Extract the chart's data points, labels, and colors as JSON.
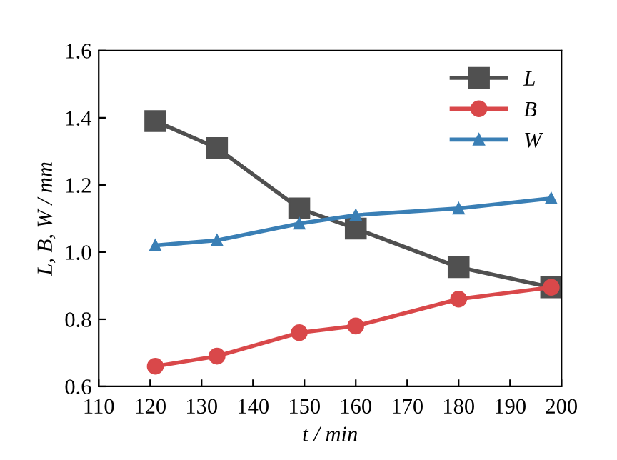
{
  "chart_data": {
    "type": "line",
    "xlabel": "t / min",
    "ylabel": "L, B, W / mm",
    "x": [
      121,
      133,
      149,
      160,
      180,
      198
    ],
    "series": [
      {
        "name": "L",
        "color": "#505050",
        "marker": "square",
        "values": [
          1.39,
          1.31,
          1.13,
          1.07,
          0.955,
          0.895
        ]
      },
      {
        "name": "B",
        "color": "#d9484a",
        "marker": "circle",
        "values": [
          0.66,
          0.69,
          0.76,
          0.78,
          0.86,
          0.895
        ]
      },
      {
        "name": "W",
        "color": "#3a7fb5",
        "marker": "triangle",
        "values": [
          1.02,
          1.035,
          1.085,
          1.11,
          1.13,
          1.16
        ]
      }
    ],
    "xlim": [
      110,
      200
    ],
    "xticks": [
      110,
      120,
      130,
      140,
      150,
      160,
      170,
      180,
      190,
      200
    ],
    "ylim": [
      0.6,
      1.6
    ],
    "yticks": [
      {
        "value": 0.6,
        "label": "0.6"
      },
      {
        "value": 0.8,
        "label": "0.8"
      },
      {
        "value": 1.0,
        "label": "1.0"
      },
      {
        "value": 1.2,
        "label": "1.2"
      },
      {
        "value": 1.4,
        "label": "1.4"
      },
      {
        "value": 1.6,
        "label": "1.6"
      }
    ],
    "grid": false,
    "legend": "top right",
    "line_style": "solid"
  }
}
